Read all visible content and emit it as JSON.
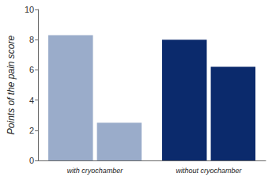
{
  "chart_data": {
    "type": "bar",
    "y_label": "Points of the pain score",
    "categories": [
      "with cryochamber",
      "without cryochamber"
    ],
    "series": [
      {
        "values": [
          8.3,
          8.0
        ],
        "colors": [
          "#9aacca",
          "#0b2a6c"
        ]
      },
      {
        "values": [
          2.5,
          6.2
        ],
        "colors": [
          "#9aacca",
          "#0b2a6c"
        ]
      }
    ],
    "ylim": [
      0,
      10
    ],
    "yticks": [
      0,
      2,
      4,
      6,
      8,
      10
    ],
    "grid": false
  }
}
